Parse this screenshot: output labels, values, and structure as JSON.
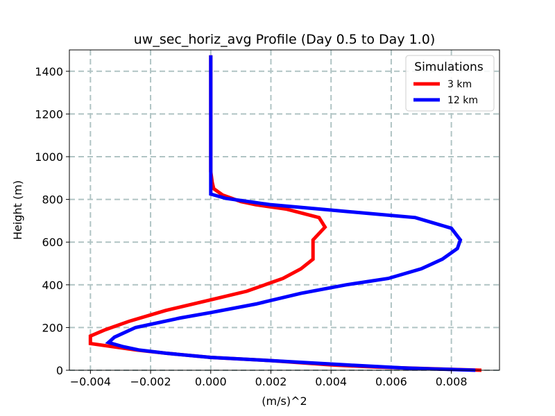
{
  "chart_data": {
    "type": "line",
    "title": "uw_sec_horiz_avg Profile (Day 0.5 to Day 1.0)",
    "xlabel": "(m/s)^2",
    "ylabel": "Height (m)",
    "xlim": [
      -0.0047,
      0.0096
    ],
    "ylim": [
      0,
      1500
    ],
    "x_ticks": [
      -0.004,
      -0.002,
      0.0,
      0.002,
      0.004,
      0.006,
      0.008
    ],
    "x_tick_labels": [
      "−0.004",
      "−0.002",
      "0.000",
      "0.002",
      "0.004",
      "0.006",
      "0.008"
    ],
    "y_ticks": [
      0,
      200,
      400,
      600,
      800,
      1000,
      1200,
      1400
    ],
    "y_tick_labels": [
      "0",
      "200",
      "400",
      "600",
      "800",
      "1000",
      "1200",
      "1400"
    ],
    "grid": true,
    "legend": {
      "title": "Simulations",
      "placement": "top-right"
    },
    "series": [
      {
        "name": "3 km",
        "color": "#ff0000",
        "points": [
          [
            0.009,
            0
          ],
          [
            0.0055,
            15
          ],
          [
            0.004,
            25
          ],
          [
            0.002,
            45
          ],
          [
            0.0,
            60
          ],
          [
            -0.0015,
            80
          ],
          [
            -0.0025,
            95
          ],
          [
            -0.004,
            125
          ],
          [
            -0.004,
            160
          ],
          [
            -0.0035,
            190
          ],
          [
            -0.0027,
            230
          ],
          [
            -0.0015,
            280
          ],
          [
            0.0,
            330
          ],
          [
            0.0012,
            370
          ],
          [
            0.0018,
            400
          ],
          [
            0.0024,
            430
          ],
          [
            0.003,
            475
          ],
          [
            0.0034,
            520
          ],
          [
            0.0034,
            560
          ],
          [
            0.0034,
            610
          ],
          [
            0.0038,
            670
          ],
          [
            0.0036,
            715
          ],
          [
            0.0025,
            755
          ],
          [
            0.0015,
            775
          ],
          [
            0.001,
            790
          ],
          [
            0.0004,
            820
          ],
          [
            0.0001,
            850
          ],
          [
            5e-05,
            880
          ],
          [
            0.0,
            930
          ],
          [
            0.0,
            1000
          ],
          [
            0.0,
            1200
          ],
          [
            0.0,
            1400
          ],
          [
            0.0,
            1475
          ]
        ]
      },
      {
        "name": "12 km",
        "color": "#0000ff",
        "points": [
          [
            0.0088,
            0
          ],
          [
            0.0065,
            10
          ],
          [
            0.0045,
            25
          ],
          [
            0.002,
            45
          ],
          [
            0.0,
            60
          ],
          [
            -0.0015,
            80
          ],
          [
            -0.0024,
            95
          ],
          [
            -0.0029,
            110
          ],
          [
            -0.0034,
            130
          ],
          [
            -0.0032,
            155
          ],
          [
            -0.0025,
            200
          ],
          [
            -0.001,
            245
          ],
          [
            0.0,
            270
          ],
          [
            0.0015,
            310
          ],
          [
            0.003,
            360
          ],
          [
            0.0045,
            400
          ],
          [
            0.0059,
            430
          ],
          [
            0.007,
            475
          ],
          [
            0.0077,
            520
          ],
          [
            0.0082,
            570
          ],
          [
            0.0083,
            610
          ],
          [
            0.008,
            665
          ],
          [
            0.0068,
            715
          ],
          [
            0.004,
            750
          ],
          [
            0.002,
            775
          ],
          [
            0.0005,
            805
          ],
          [
            0.0,
            825
          ],
          [
            0.0,
            900
          ],
          [
            0.0,
            1000
          ],
          [
            0.0,
            1200
          ],
          [
            0.0,
            1400
          ],
          [
            0.0,
            1475
          ]
        ]
      }
    ]
  }
}
